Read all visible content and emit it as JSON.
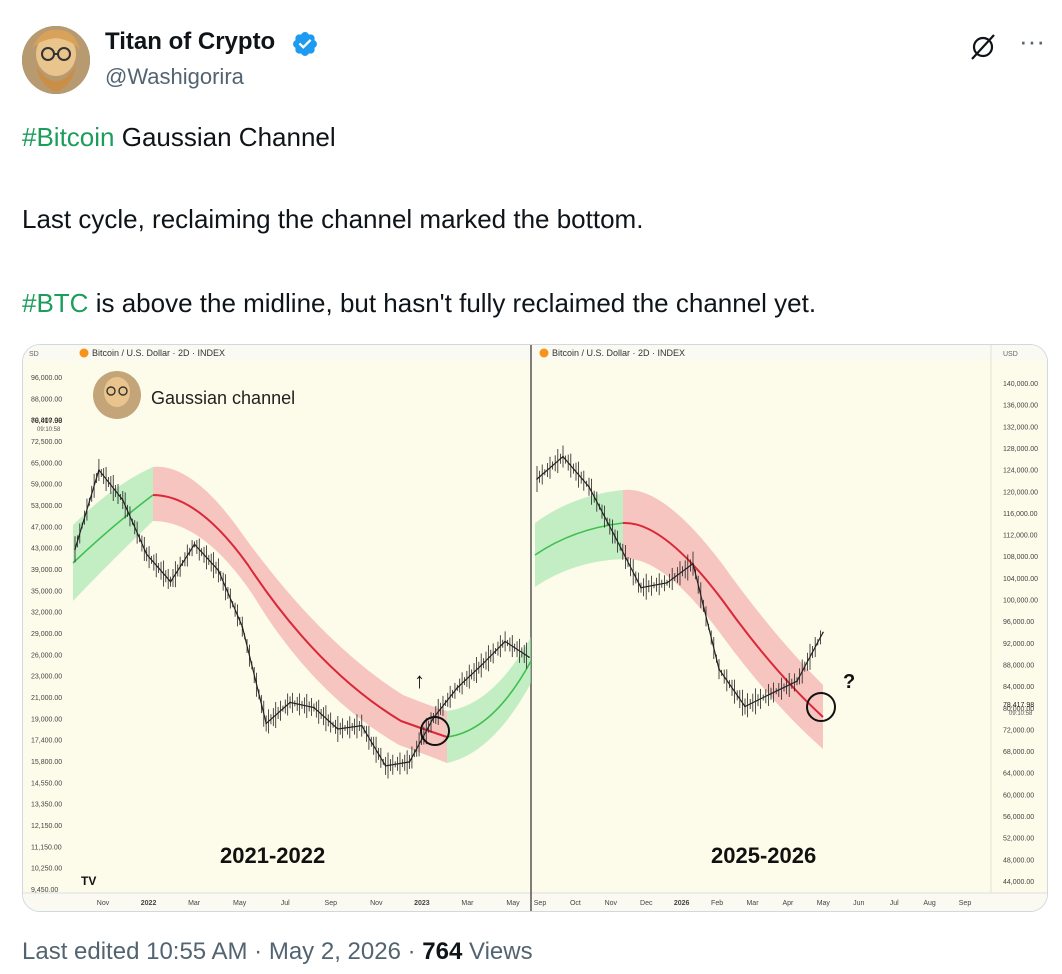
{
  "author": {
    "name": "Titan of Crypto",
    "handle": "@Washigorira",
    "verified": true,
    "verified_color": "#1d9bf0"
  },
  "header": {
    "grok_icon": "grok-icon",
    "more_icon": "more-icon"
  },
  "tweet": {
    "p1_hashtag": "#Bitcoin",
    "p1_rest": " Gaussian Channel",
    "p2": "Last cycle, reclaiming the channel marked the bottom.",
    "p3_hashtag": "#BTC",
    "p3_rest": " is above the midline, but hasn't fully reclaimed the channel yet.",
    "hashtag_color": "#1a9e5a"
  },
  "footer": {
    "edited": "Last edited 10:55 AM",
    "sep1": "·",
    "date": "May 2, 2026",
    "sep2": "·",
    "views_count": "764",
    "views_label": "Views"
  },
  "chart_data": [
    {
      "type": "line",
      "title": "Bitcoin / U.S. Dollar · 2D · INDEX",
      "overlay_label": "Gaussian channel",
      "period_label": "2021-2022",
      "yaxis_ticks": [
        "96,000.00",
        "88,000.00",
        "80,000.00",
        "72,500.00",
        "65,000.00",
        "59,000.00",
        "53,000.00",
        "47,000.00",
        "43,000.00",
        "39,000.00",
        "35,000.00",
        "32,000.00",
        "29,000.00",
        "26,000.00",
        "23,000.00",
        "21,000.00",
        "19,000.00",
        "17,400.00",
        "15,800.00",
        "14,550.00",
        "13,350.00",
        "12,150.00",
        "11,150.00",
        "10,250.00",
        "9,450.00"
      ],
      "yaxis_unit": "SD",
      "price_label": "78,417.98",
      "price_time": "09:10:58",
      "xaxis_ticks": [
        "Nov",
        "2022",
        "Mar",
        "May",
        "Jul",
        "Sep",
        "Nov",
        "2023",
        "Mar",
        "May"
      ],
      "price_series": [
        {
          "x": "Oct 2021",
          "y": 44000
        },
        {
          "x": "Nov 2021",
          "y": 63000
        },
        {
          "x": "Dec 2021",
          "y": 55000
        },
        {
          "x": "Jan 2022",
          "y": 43000
        },
        {
          "x": "Feb 2022",
          "y": 38000
        },
        {
          "x": "Mar 2022",
          "y": 45000
        },
        {
          "x": "Apr 2022",
          "y": 40000
        },
        {
          "x": "May 2022",
          "y": 31000
        },
        {
          "x": "Jun 2022",
          "y": 20000
        },
        {
          "x": "Jul 2022",
          "y": 22000
        },
        {
          "x": "Aug 2022",
          "y": 21500
        },
        {
          "x": "Sep 2022",
          "y": 19500
        },
        {
          "x": "Oct 2022",
          "y": 19800
        },
        {
          "x": "Nov 2022",
          "y": 16500
        },
        {
          "x": "Dec 2022",
          "y": 16800
        },
        {
          "x": "Jan 2023",
          "y": 20500
        },
        {
          "x": "Feb 2023",
          "y": 23500
        },
        {
          "x": "Mar 2023",
          "y": 26000
        },
        {
          "x": "Apr 2023",
          "y": 29000
        },
        {
          "x": "May 2023",
          "y": 27000
        }
      ],
      "annotation": "↑",
      "channel_colors": {
        "up": "#8ee39a",
        "down": "#f08a8a",
        "mid_down": "#d9283a",
        "mid_up": "#3fbf4f"
      }
    },
    {
      "type": "line",
      "title": "Bitcoin / U.S. Dollar · 2D · INDEX",
      "period_label": "2025-2026",
      "yaxis_unit": "USD",
      "yaxis_ticks": [
        "140,000.00",
        "136,000.00",
        "132,000.00",
        "128,000.00",
        "124,000.00",
        "120,000.00",
        "116,000.00",
        "112,000.00",
        "108,000.00",
        "104,000.00",
        "100,000.00",
        "96,000.00",
        "92,000.00",
        "88,000.00",
        "84,000.00",
        "80,000.00",
        "72,000.00",
        "68,000.00",
        "64,000.00",
        "60,000.00",
        "56,000.00",
        "52,000.00",
        "48,000.00",
        "44,000.00"
      ],
      "price_label": "78,417.98",
      "price_time": "09:10:58",
      "xaxis_ticks": [
        "Sep",
        "Oct",
        "Nov",
        "Dec",
        "2026",
        "Feb",
        "Mar",
        "Apr",
        "May",
        "Jun",
        "Jul",
        "Aug",
        "Sep"
      ],
      "price_series": [
        {
          "x": "Sep 2025",
          "y": 112000
        },
        {
          "x": "Oct 2025",
          "y": 118000
        },
        {
          "x": "Oct 2025b",
          "y": 110000
        },
        {
          "x": "Nov 2025",
          "y": 98000
        },
        {
          "x": "Nov 2025b",
          "y": 87000
        },
        {
          "x": "Dec 2025",
          "y": 88000
        },
        {
          "x": "Jan 2026",
          "y": 92000
        },
        {
          "x": "Feb 2026",
          "y": 72000
        },
        {
          "x": "Feb 2026b",
          "y": 66000
        },
        {
          "x": "Mar 2026",
          "y": 68000
        },
        {
          "x": "Apr 2026",
          "y": 70000
        },
        {
          "x": "May 2026",
          "y": 78400
        }
      ],
      "annotation": "?"
    }
  ]
}
